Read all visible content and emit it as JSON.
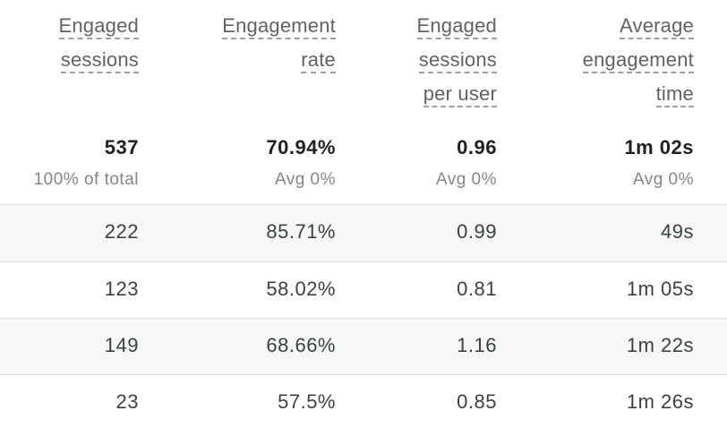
{
  "headers": [
    {
      "lines": [
        "Engaged",
        "sessions"
      ]
    },
    {
      "lines": [
        "Engagement",
        "rate"
      ]
    },
    {
      "lines": [
        "Engaged",
        "sessions",
        "per user"
      ]
    },
    {
      "lines": [
        "Average",
        "engagement",
        "time"
      ]
    }
  ],
  "totals": [
    {
      "value": "537",
      "sub": "100% of total"
    },
    {
      "value": "70.94%",
      "sub": "Avg 0%"
    },
    {
      "value": "0.96",
      "sub": "Avg 0%"
    },
    {
      "value": "1m 02s",
      "sub": "Avg 0%"
    }
  ],
  "rows": [
    [
      "222",
      "85.71%",
      "0.99",
      "49s"
    ],
    [
      "123",
      "58.02%",
      "0.81",
      "1m 05s"
    ],
    [
      "149",
      "68.66%",
      "1.16",
      "1m 22s"
    ],
    [
      "23",
      "57.5%",
      "0.85",
      "1m 26s"
    ]
  ]
}
